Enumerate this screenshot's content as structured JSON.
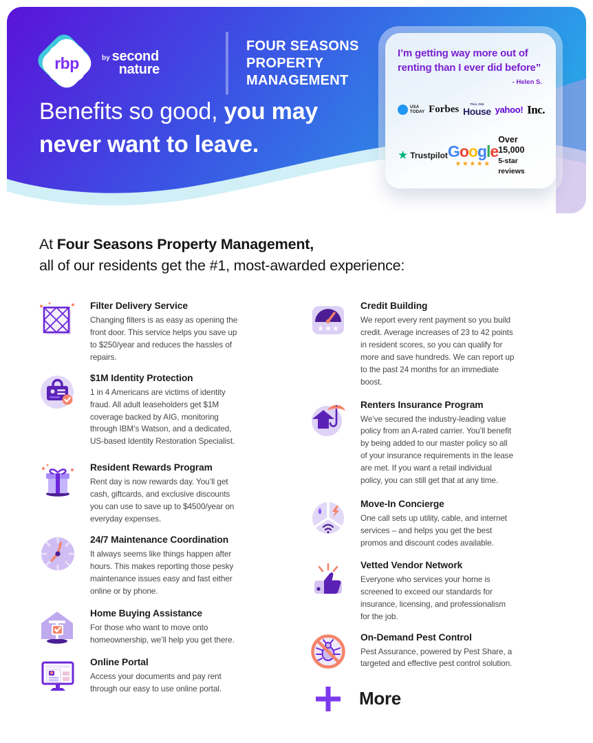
{
  "header": {
    "brand": {
      "logo_text": "rbp",
      "by_label": "by",
      "company_line1": "second",
      "company_line2": "nature"
    },
    "property_name": [
      "FOUR SEASONS",
      "PROPERTY",
      "MANAGEMENT"
    ],
    "headline": {
      "light": "Benefits so good, ",
      "bold_line1": "you may",
      "bold_line2": "never want to leave."
    }
  },
  "testimonial": {
    "quote": "I’m getting way more out of renting than I ever did before”",
    "attribution": "- Helen S.",
    "media": {
      "usa_today_line1": "USA",
      "usa_today_line2": "TODAY",
      "forbes": "Forbes",
      "toh_top": "This Old",
      "toh_main": "House",
      "yahoo": "yahoo!",
      "inc": "Inc."
    },
    "reviews": {
      "trustpilot_star": "★",
      "trustpilot": "Trustpilot",
      "google_letters": [
        {
          "ch": "G",
          "color": "#4285F4"
        },
        {
          "ch": "o",
          "color": "#EA4335"
        },
        {
          "ch": "o",
          "color": "#FBBC05"
        },
        {
          "ch": "g",
          "color": "#4285F4"
        },
        {
          "ch": "l",
          "color": "#34A853"
        },
        {
          "ch": "e",
          "color": "#EA4335"
        }
      ],
      "google_stars": "★★★★★",
      "count_line1": "Over 15,000",
      "count_line2": "5-star reviews"
    }
  },
  "intro": {
    "prefix": "At ",
    "bold": "Four Seasons Property Management,",
    "line2": "all of our residents get the #1, most-awarded experience:"
  },
  "benefits": {
    "left": [
      {
        "icon": "filter-icon",
        "title": "Filter Delivery Service",
        "body": "Changing filters is as easy as opening the front door. This service helps you save up to $250/year and reduces the hassles of repairs."
      },
      {
        "icon": "identity-card-icon",
        "title": "$1M Identity Protection",
        "body": "1 in 4 Americans are victims of identity fraud. All adult leaseholders get $1M coverage backed by AIG, monitoring through IBM’s Watson, and a dedicated, US-based Identity Restoration Specialist."
      },
      {
        "icon": "gift-icon",
        "title": "Resident Rewards Program",
        "body": "Rent day is now rewards day. You’ll get cash, giftcards, and exclusive discounts you can use to save up to $4500/year on everyday expenses."
      },
      {
        "icon": "clock-icon",
        "title": "24/7 Maintenance Coordination",
        "body": "It always seems like things happen after hours. This makes reporting those pesky maintenance issues easy and fast either online or by phone."
      },
      {
        "icon": "home-sold-icon",
        "title": "Home Buying Assistance",
        "body": "For those who want to move onto homeownership, we’ll help you get there."
      },
      {
        "icon": "monitor-portal-icon",
        "title": "Online Portal",
        "body": "Access your documents and pay rent through our easy to use online portal."
      }
    ],
    "right": [
      {
        "icon": "credit-gauge-icon",
        "title": "Credit Building",
        "body": "We report every rent payment so you build credit. Average increases of 23 to 42 points in resident scores, so you can qualify for more and save hundreds. We can report up to the past 24 months for an immediate boost."
      },
      {
        "icon": "umbrella-home-icon",
        "title": "Renters Insurance Program",
        "body": "We’ve secured the industry-leading value policy from an A-rated carrier. You’ll benefit by being added to our master policy so all of your insurance requirements in the lease are met. If you want a retail individual policy, you can still get that at any time."
      },
      {
        "icon": "utilities-pie-icon",
        "title": "Move-In Concierge",
        "body": "One call sets up utility, cable, and internet services – and helps you get the best promos and discount codes available."
      },
      {
        "icon": "thumbs-up-icon",
        "title": "Vetted Vendor Network",
        "body": "Everyone who services your home is screened to exceed our standards for insurance, licensing, and professionalism for the job."
      },
      {
        "icon": "no-pests-icon",
        "title": "On-Demand Pest Control",
        "body": "Pest Assurance, powered by Pest Share, a targeted and effective pest control solution."
      }
    ]
  },
  "more_label": "More",
  "colors": {
    "gradient_start": "#5a13d8",
    "gradient_mid": "#3b52e4",
    "gradient_end": "#2aa0e8",
    "quote_purple": "#7a1fd0",
    "accent_purple": "#6d28d9",
    "coral": "#f4846a",
    "trustpilot_green": "#00b67a",
    "star_gold": "#f5a623"
  }
}
